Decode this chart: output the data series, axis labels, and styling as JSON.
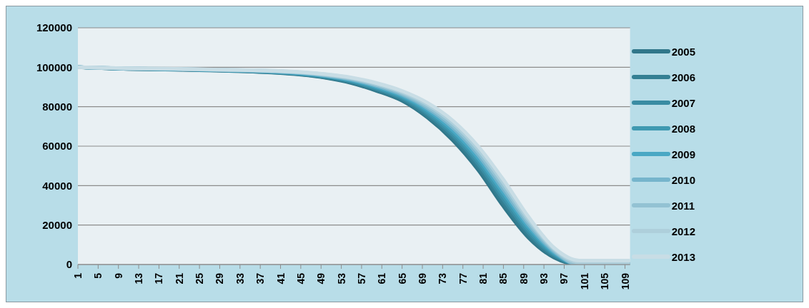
{
  "chart_data": {
    "type": "line",
    "x": [
      1,
      10,
      20,
      30,
      40,
      45,
      50,
      55,
      60,
      65,
      70,
      75,
      80,
      85,
      90,
      95,
      100,
      105,
      110
    ],
    "xlim": [
      1,
      110
    ],
    "xticks": [
      1,
      5,
      9,
      13,
      17,
      21,
      25,
      29,
      33,
      37,
      41,
      45,
      49,
      53,
      57,
      61,
      65,
      69,
      73,
      77,
      81,
      85,
      89,
      93,
      97,
      101,
      105,
      109
    ],
    "ylim": [
      0,
      120000
    ],
    "yticks": [
      0,
      20000,
      40000,
      60000,
      80000,
      100000,
      120000
    ],
    "grid": "y",
    "legend": "right",
    "marker": "none",
    "line_style": "solid",
    "series": [
      {
        "name": "2005",
        "color": "#31778a",
        "values": [
          100000,
          99200,
          98800,
          98200,
          97200,
          96200,
          94600,
          92000,
          88000,
          83000,
          74500,
          63000,
          48000,
          29500,
          13500,
          3500,
          0,
          0,
          0
        ]
      },
      {
        "name": "2006",
        "color": "#347f93",
        "values": [
          100000,
          99200,
          98900,
          98300,
          97300,
          96400,
          94800,
          92400,
          88500,
          83600,
          75400,
          64300,
          49500,
          31200,
          14800,
          4100,
          0,
          0,
          0
        ]
      },
      {
        "name": "2007",
        "color": "#3a8ca3",
        "values": [
          100000,
          99300,
          98900,
          98400,
          97500,
          96600,
          95100,
          92700,
          89000,
          84300,
          76400,
          65500,
          51000,
          32900,
          16100,
          4800,
          0,
          0,
          0
        ]
      },
      {
        "name": "2008",
        "color": "#3f99b1",
        "values": [
          100000,
          99300,
          99000,
          98400,
          97600,
          96700,
          95300,
          93100,
          89500,
          84900,
          77300,
          66800,
          52500,
          34600,
          17400,
          5400,
          0,
          0,
          0
        ]
      },
      {
        "name": "2009",
        "color": "#4aa8c4",
        "values": [
          100000,
          99400,
          99000,
          98500,
          97700,
          96900,
          95600,
          93400,
          90000,
          85500,
          78300,
          68000,
          54000,
          36300,
          18800,
          6000,
          0,
          0,
          0
        ]
      },
      {
        "name": "2010",
        "color": "#76b5cc",
        "values": [
          100000,
          99400,
          99100,
          98600,
          97800,
          97100,
          95800,
          93800,
          90500,
          86100,
          79200,
          69300,
          55500,
          37900,
          20100,
          6600,
          0,
          0,
          0
        ]
      },
      {
        "name": "2011",
        "color": "#93c2d3",
        "values": [
          100000,
          99400,
          99100,
          98700,
          98000,
          97300,
          96000,
          94100,
          91000,
          86800,
          80100,
          70500,
          57000,
          39600,
          21400,
          7300,
          0,
          0,
          0
        ]
      },
      {
        "name": "2012",
        "color": "#aecfdb",
        "values": [
          100000,
          99500,
          99200,
          98700,
          98100,
          97400,
          96300,
          94500,
          91500,
          87400,
          81100,
          71800,
          58500,
          41300,
          22700,
          7900,
          1000,
          1000,
          1000
        ]
      },
      {
        "name": "2013",
        "color": "#c8dde5",
        "values": [
          100000,
          99500,
          99200,
          98800,
          98200,
          97600,
          96500,
          94800,
          92000,
          88000,
          82000,
          73000,
          60000,
          43000,
          24000,
          8500,
          2000,
          2000,
          2000
        ]
      }
    ]
  }
}
